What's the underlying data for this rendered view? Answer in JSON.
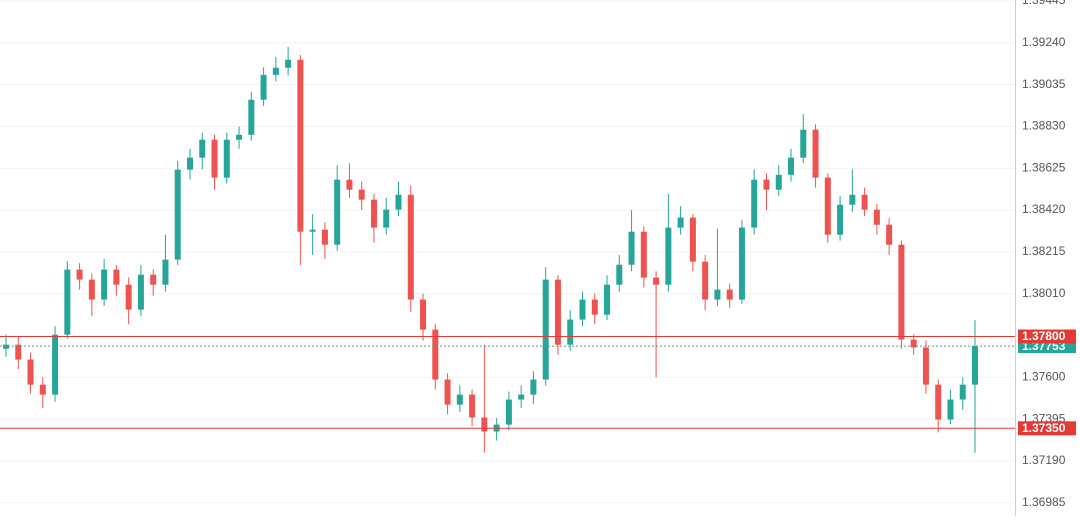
{
  "chart_data": {
    "type": "candlestick",
    "up_color": "#26a69a",
    "down_color": "#ef5350",
    "ylim": [
      1.3692,
      1.3945
    ],
    "yticks": [
      1.39445,
      {
        "value": 1.3924,
        "label": "1.39240"
      },
      1.39035,
      {
        "value": 1.3883,
        "label": "1.38830"
      },
      1.38625,
      {
        "value": 1.3842,
        "label": "1.38420"
      },
      1.38215,
      {
        "value": 1.3801,
        "label": "1.38010"
      },
      {
        "value": 1.376,
        "label": "1.37600"
      },
      1.37395,
      {
        "value": 1.3719,
        "label": "1.37190"
      },
      1.36985
    ],
    "grid": true,
    "levels": [
      {
        "value": 1.378,
        "label": "1.37800",
        "color": "#e53935"
      },
      {
        "value": 1.3735,
        "label": "1.37350",
        "color": "#e53935"
      }
    ],
    "last_price": {
      "value": 1.37753,
      "label": "1.37753",
      "color": "#26a69a"
    },
    "open": [
      1.3774,
      1.3776,
      1.37687,
      1.37564,
      1.37515,
      1.37809,
      1.38128,
      1.38079,
      1.37981,
      1.38128,
      1.38054,
      1.37932,
      1.38103,
      1.38054,
      1.38177,
      1.38618,
      1.38677,
      1.38765,
      1.38579,
      1.38765,
      1.38789,
      1.38961,
      1.39083,
      1.39118,
      1.39157,
      1.38314,
      1.38324,
      1.3825,
      1.38569,
      1.3852,
      1.38471,
      1.38334,
      1.38422,
      1.38495,
      1.37981,
      1.37834,
      1.37589,
      1.37466,
      1.37515,
      1.37403,
      1.37334,
      1.37368,
      1.37491,
      1.37515,
      1.37589,
      1.38079,
      1.3776,
      1.37883,
      1.37981,
      1.37907,
      1.38054,
      1.38152,
      1.38314,
      1.38089,
      1.38054,
      1.38334,
      1.38383,
      1.38167,
      1.37981,
      1.3803,
      1.37981,
      1.38334,
      1.38569,
      1.3852,
      1.38593,
      1.38677,
      1.38814,
      1.38579,
      1.38299,
      1.38446,
      1.38495,
      1.38422,
      1.38348,
      1.3825,
      1.37785,
      1.37746,
      1.37564,
      1.37393,
      1.37491,
      1.37564
    ],
    "high": [
      1.3781,
      1.378,
      1.3772,
      1.376,
      1.3785,
      1.3817,
      1.3816,
      1.3811,
      1.3818,
      1.3815,
      1.3809,
      1.3815,
      1.3813,
      1.383,
      1.3866,
      1.3872,
      1.388,
      1.3879,
      1.388,
      1.3883,
      1.39,
      1.3912,
      1.3917,
      1.3922,
      1.3918,
      1.384,
      1.3836,
      1.3864,
      1.3865,
      1.3856,
      1.385,
      1.3848,
      1.3856,
      1.3854,
      1.3801,
      1.3786,
      1.3762,
      1.3756,
      1.3754,
      1.3776,
      1.374,
      1.3753,
      1.3756,
      1.3763,
      1.3814,
      1.381,
      1.3793,
      1.3802,
      1.3801,
      1.381,
      1.382,
      1.3842,
      1.3834,
      1.3812,
      1.385,
      1.3844,
      1.384,
      1.382,
      1.3833,
      1.3806,
      1.3837,
      1.3862,
      1.386,
      1.3864,
      1.3872,
      1.3889,
      1.3884,
      1.386,
      1.3849,
      1.3862,
      1.3853,
      1.3845,
      1.3838,
      1.3827,
      1.3781,
      1.3778,
      1.3759,
      1.3754,
      1.376,
      1.3788
    ],
    "low": [
      1.377,
      1.3764,
      1.3752,
      1.3745,
      1.3748,
      1.3779,
      1.3803,
      1.379,
      1.3795,
      1.38,
      1.3786,
      1.379,
      1.38,
      1.3802,
      1.3815,
      1.3857,
      1.3862,
      1.3852,
      1.3855,
      1.3872,
      1.3876,
      1.3893,
      1.3905,
      1.3908,
      1.3815,
      1.382,
      1.3818,
      1.3822,
      1.3848,
      1.3842,
      1.3826,
      1.383,
      1.3839,
      1.3792,
      1.3778,
      1.3754,
      1.3742,
      1.3743,
      1.3736,
      1.3723,
      1.3729,
      1.3734,
      1.3745,
      1.3747,
      1.3756,
      1.3771,
      1.3773,
      1.3785,
      1.3786,
      1.3788,
      1.3802,
      1.3812,
      1.3804,
      1.376,
      1.3802,
      1.383,
      1.3812,
      1.3793,
      1.3795,
      1.3794,
      1.3796,
      1.383,
      1.3842,
      1.3849,
      1.3856,
      1.3865,
      1.3853,
      1.3826,
      1.3827,
      1.3841,
      1.3839,
      1.383,
      1.382,
      1.3774,
      1.3771,
      1.3752,
      1.3733,
      1.3737,
      1.3744,
      1.3723
    ],
    "close": [
      1.3776,
      1.37687,
      1.37564,
      1.37515,
      1.37809,
      1.38128,
      1.38079,
      1.37981,
      1.38128,
      1.38054,
      1.37932,
      1.38103,
      1.38054,
      1.38177,
      1.38618,
      1.38677,
      1.38765,
      1.38579,
      1.38765,
      1.38789,
      1.38961,
      1.39083,
      1.39118,
      1.39157,
      1.38314,
      1.38324,
      1.3825,
      1.38569,
      1.3852,
      1.38471,
      1.38334,
      1.38422,
      1.38495,
      1.37981,
      1.37834,
      1.37589,
      1.37466,
      1.37515,
      1.37403,
      1.37334,
      1.37368,
      1.37491,
      1.37515,
      1.37589,
      1.38079,
      1.3776,
      1.37883,
      1.37981,
      1.37907,
      1.38054,
      1.38152,
      1.38314,
      1.38089,
      1.38054,
      1.38334,
      1.38383,
      1.38167,
      1.37981,
      1.3803,
      1.37981,
      1.38334,
      1.38569,
      1.3852,
      1.38593,
      1.38677,
      1.38814,
      1.38579,
      1.38299,
      1.38446,
      1.38495,
      1.38422,
      1.38348,
      1.3825,
      1.37785,
      1.37746,
      1.37564,
      1.37393,
      1.37491,
      1.37564,
      1.37753
    ]
  }
}
